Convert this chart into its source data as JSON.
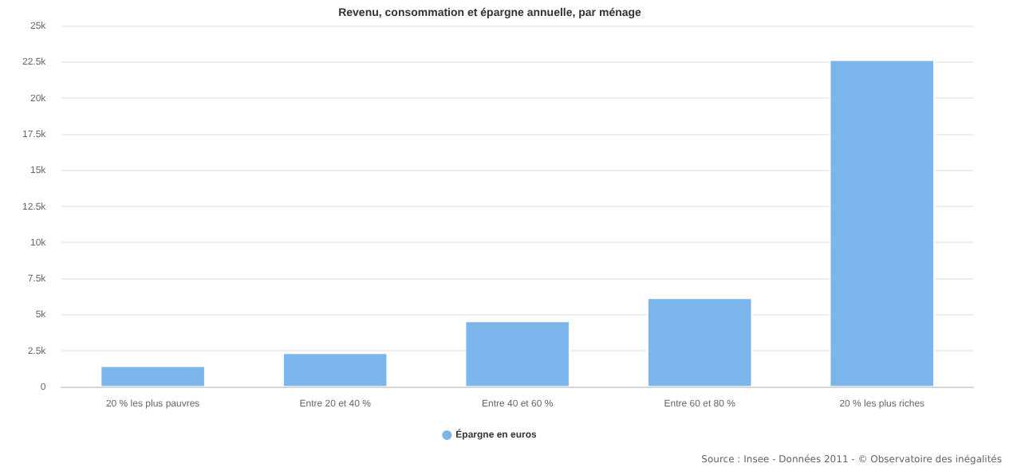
{
  "chart_data": {
    "type": "bar",
    "title": "Revenu, consommation et épargne annuelle, par ménage",
    "categories": [
      "20 % les plus pauvres",
      "Entre 20 et 40 %",
      "Entre 40 et 60 %",
      "Entre 60 et 80 %",
      "20 % les plus riches"
    ],
    "series": [
      {
        "name": "Épargne en euros",
        "color": "#7cb5ec",
        "values": [
          1500,
          2400,
          4600,
          6200,
          22700
        ]
      }
    ],
    "ylim": [
      0,
      25000
    ],
    "yticks": [
      {
        "value": 0,
        "label": "0"
      },
      {
        "value": 2500,
        "label": "2.5k"
      },
      {
        "value": 5000,
        "label": "5k"
      },
      {
        "value": 7500,
        "label": "7.5k"
      },
      {
        "value": 10000,
        "label": "10k"
      },
      {
        "value": 12500,
        "label": "12.5k"
      },
      {
        "value": 15000,
        "label": "15k"
      },
      {
        "value": 17500,
        "label": "17.5k"
      },
      {
        "value": 20000,
        "label": "20k"
      },
      {
        "value": 22500,
        "label": "22.5k"
      },
      {
        "value": 25000,
        "label": "25k"
      }
    ],
    "grid": "y",
    "legend": "bottom",
    "annotations": [
      "Source : Insee - Données 2011 - © Observatoire des inégalités"
    ]
  }
}
